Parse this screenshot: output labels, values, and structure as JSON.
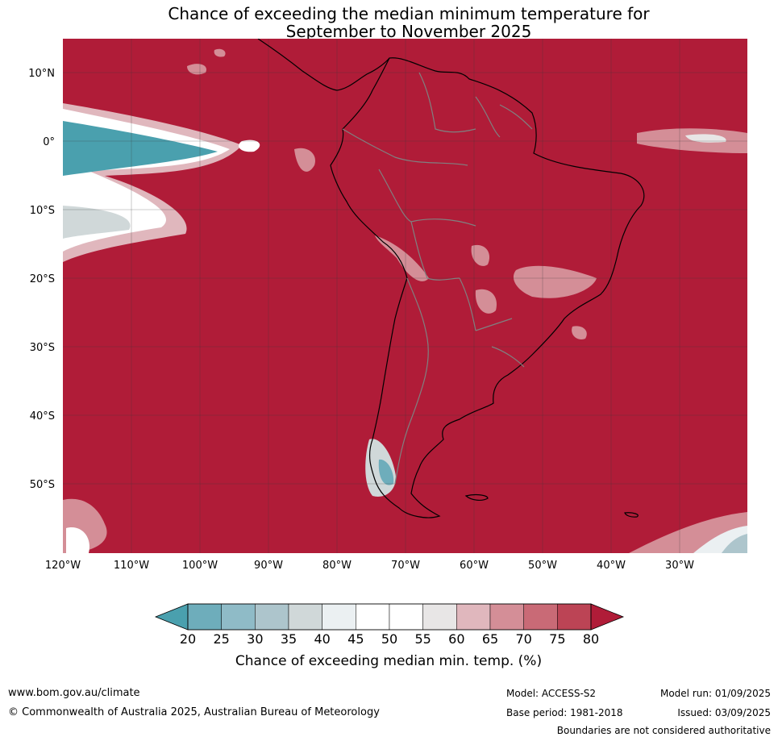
{
  "title": {
    "line1": "Chance of exceeding the median minimum temperature for",
    "line2": "September to November 2025"
  },
  "map": {
    "lat_labels": [
      "10°N",
      "0°",
      "10°S",
      "20°S",
      "30°S",
      "40°S",
      "50°S"
    ],
    "lon_labels": [
      "120°W",
      "110°W",
      "100°W",
      "90°W",
      "80°W",
      "70°W",
      "60°W",
      "50°W",
      "40°W",
      "30°W"
    ],
    "colors": {
      "ocean_dominant": "#b01c38",
      "border": "#808080",
      "coast": "#000000"
    }
  },
  "colorbar": {
    "ticks": [
      "20",
      "25",
      "30",
      "35",
      "40",
      "45",
      "50",
      "55",
      "60",
      "65",
      "70",
      "75",
      "80"
    ],
    "colors": [
      "#4aa0ae",
      "#6eadbb",
      "#8fbbc7",
      "#adc5cc",
      "#d0d8d9",
      "#ebf0f2",
      "#ffffff",
      "#ffffff",
      "#e8e6e6",
      "#e0b7bd",
      "#d48e97",
      "#c96a76",
      "#bc4455",
      "#b01c38"
    ],
    "label": "Chance of exceeding median min. temp. (%)"
  },
  "footer": {
    "url": "www.bom.gov.au/climate",
    "copyright": "© Commonwealth of Australia 2025, Australian Bureau of Meteorology",
    "model": "Model: ACCESS-S2",
    "base_period": "Base period: 1981-2018",
    "model_run": "Model run: 01/09/2025",
    "issued": "Issued: 03/09/2025",
    "disclaimer": "Boundaries are not considered authoritative"
  }
}
